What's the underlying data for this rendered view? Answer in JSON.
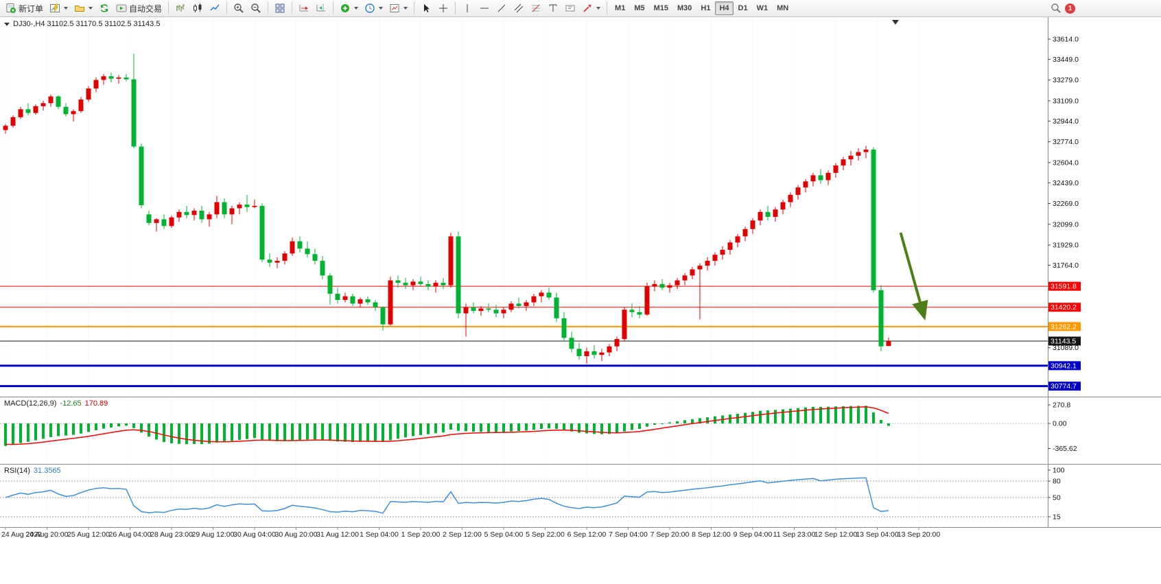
{
  "toolbar": {
    "new_order_label": "新订单",
    "auto_trading_label": "自动交易",
    "timeframes": [
      "M1",
      "M5",
      "M15",
      "M30",
      "H1",
      "H4",
      "D1",
      "W1",
      "MN"
    ],
    "active_timeframe": "H4",
    "notification_count": "1"
  },
  "chart": {
    "symbol_ohlc": "DJ30-,H4 31102.5 31170.5 31102.5 31143.5"
  },
  "macd_panel": {
    "name": "MACD(12,26,9)",
    "value_main": "-12.65",
    "value_signal": "170.89",
    "axis_ticks": [
      "270.8",
      "0.00",
      "-365.62"
    ],
    "axis_values": [
      270.8,
      0,
      -365.62
    ]
  },
  "rsi_panel": {
    "name": "RSI(14)",
    "value": "31.3565",
    "axis_ticks": [
      "100",
      "80",
      "50",
      "15"
    ],
    "axis_values": [
      100,
      80,
      50,
      15
    ],
    "levels": [
      80,
      50,
      15
    ]
  },
  "colors": {
    "up": "#e00000",
    "down": "#00b330",
    "macd_histogram": "#00b330",
    "macd_signal": "#ff0000",
    "rsi_line": "#3e8ede",
    "arrow": "#4e7d1a"
  },
  "chart_data": {
    "type": "candlestick",
    "symbol": "DJ30-",
    "timeframe": "H4",
    "current_ohlc": {
      "open": 31102.5,
      "high": 31170.5,
      "low": 31102.5,
      "close": 31143.5
    },
    "price_range_approx": [
      30690,
      33790
    ],
    "y_axis_ticks": [
      33614.0,
      33449.0,
      33279.0,
      33109.0,
      32944.0,
      32774.0,
      32604.0,
      32439.0,
      32269.0,
      32099.0,
      31929.0,
      31764.0,
      31089.0
    ],
    "x_axis_labels": [
      "24 Aug 2022",
      "24 Aug 20:00",
      "25 Aug 12:00",
      "26 Aug 04:00",
      "28 Aug 23:00",
      "29 Aug 12:00",
      "30 Aug 04:00",
      "30 Aug 20:00",
      "31 Aug 12:00",
      "1 Sep 04:00",
      "1 Sep 20:00",
      "2 Sep 12:00",
      "5 Sep 04:00",
      "5 Sep 22:00",
      "6 Sep 12:00",
      "7 Sep 04:00",
      "7 Sep 20:00",
      "8 Sep 12:00",
      "9 Sep 04:00",
      "11 Sep 23:00",
      "12 Sep 12:00",
      "13 Sep 04:00",
      "13 Sep 20:00"
    ],
    "horizontal_lines": [
      {
        "price": 31591.8,
        "label": "31591.8",
        "color": "#ff0000",
        "width": 1,
        "role": "resistance-line"
      },
      {
        "price": 31420.2,
        "label": "31420.2",
        "color": "#ff0000",
        "width": 1,
        "role": "resistance-line"
      },
      {
        "price": 31262.2,
        "label": "31262.2",
        "color": "#ff9900",
        "width": 2,
        "role": "pivot-line"
      },
      {
        "price": 31143.5,
        "label": "31143.5",
        "color": "#151515",
        "width": 1,
        "role": "current-price-line"
      },
      {
        "price": 30942.1,
        "label": "30942.1",
        "color": "#0000cc",
        "width": 3,
        "role": "support-line"
      },
      {
        "price": 30774.7,
        "label": "30774.7",
        "color": "#0000cc",
        "width": 3,
        "role": "support-line"
      }
    ],
    "indicators": [
      {
        "type": "MACD",
        "params": [
          12,
          26,
          9
        ],
        "current_values": [
          -12.65,
          170.89
        ]
      },
      {
        "type": "RSI",
        "params": [
          14
        ],
        "current_value": 31.3565
      }
    ],
    "arrow_annotation": {
      "x_bar_from": 118.6,
      "price_from": 32030,
      "x_bar_to": 122.2,
      "price_to": 31310
    },
    "ohlc": [
      [
        32870,
        32920,
        32840,
        32905
      ],
      [
        32905,
        32990,
        32890,
        32975
      ],
      [
        32975,
        33060,
        32960,
        33040
      ],
      [
        33040,
        33090,
        32990,
        33010
      ],
      [
        33010,
        33080,
        32995,
        33065
      ],
      [
        33065,
        33110,
        33030,
        33090
      ],
      [
        33090,
        33160,
        33060,
        33145
      ],
      [
        33145,
        33155,
        33040,
        33060
      ],
      [
        33060,
        33090,
        32980,
        33000
      ],
      [
        33000,
        33040,
        32940,
        33025
      ],
      [
        33025,
        33140,
        33010,
        33120
      ],
      [
        33120,
        33230,
        33100,
        33210
      ],
      [
        33210,
        33300,
        33180,
        33280
      ],
      [
        33280,
        33330,
        33240,
        33310
      ],
      [
        33310,
        33340,
        33260,
        33290
      ],
      [
        33290,
        33320,
        33250,
        33300
      ],
      [
        33300,
        33330,
        33270,
        33285
      ],
      [
        33285,
        33495,
        32720,
        32735
      ],
      [
        32735,
        32760,
        32230,
        32255
      ],
      [
        32180,
        32210,
        32090,
        32110
      ],
      [
        32110,
        32150,
        32040,
        32140
      ],
      [
        32140,
        32180,
        32060,
        32085
      ],
      [
        32085,
        32170,
        32070,
        32155
      ],
      [
        32155,
        32220,
        32120,
        32200
      ],
      [
        32200,
        32250,
        32150,
        32175
      ],
      [
        32175,
        32230,
        32130,
        32210
      ],
      [
        32210,
        32250,
        32110,
        32140
      ],
      [
        32140,
        32200,
        32080,
        32180
      ],
      [
        32180,
        32330,
        32150,
        32280
      ],
      [
        32280,
        32310,
        32150,
        32180
      ],
      [
        32180,
        32250,
        32100,
        32230
      ],
      [
        32230,
        32280,
        32180,
        32260
      ],
      [
        32260,
        32340,
        32200,
        32240
      ],
      [
        32240,
        32300,
        32230,
        32250
      ],
      [
        32250,
        32270,
        31790,
        31810
      ],
      [
        31810,
        31860,
        31750,
        31785
      ],
      [
        31785,
        31830,
        31740,
        31800
      ],
      [
        31800,
        31880,
        31770,
        31860
      ],
      [
        31860,
        31990,
        31840,
        31960
      ],
      [
        31960,
        32000,
        31870,
        31900
      ],
      [
        31900,
        31960,
        31830,
        31855
      ],
      [
        31855,
        31900,
        31770,
        31800
      ],
      [
        31800,
        31840,
        31650,
        31680
      ],
      [
        31680,
        31700,
        31440,
        31530
      ],
      [
        31530,
        31580,
        31450,
        31480
      ],
      [
        31480,
        31540,
        31460,
        31510
      ],
      [
        31510,
        31530,
        31430,
        31450
      ],
      [
        31450,
        31500,
        31420,
        31485
      ],
      [
        31485,
        31510,
        31440,
        31460
      ],
      [
        31460,
        31480,
        31390,
        31420
      ],
      [
        31420,
        31430,
        31230,
        31280
      ],
      [
        31280,
        31670,
        31270,
        31640
      ],
      [
        31640,
        31680,
        31580,
        31620
      ],
      [
        31620,
        31660,
        31570,
        31600
      ],
      [
        31600,
        31650,
        31560,
        31630
      ],
      [
        31630,
        31670,
        31590,
        31610
      ],
      [
        31610,
        31640,
        31560,
        31590
      ],
      [
        31590,
        31640,
        31540,
        31620
      ],
      [
        31620,
        31660,
        31570,
        31600
      ],
      [
        31600,
        32030,
        31580,
        32000
      ],
      [
        32000,
        32040,
        31330,
        31370
      ],
      [
        31370,
        31450,
        31180,
        31420
      ],
      [
        31420,
        31460,
        31370,
        31390
      ],
      [
        31390,
        31430,
        31350,
        31410
      ],
      [
        31410,
        31450,
        31380,
        31400
      ],
      [
        31400,
        31440,
        31340,
        31370
      ],
      [
        31370,
        31420,
        31330,
        31400
      ],
      [
        31400,
        31470,
        31380,
        31450
      ],
      [
        31450,
        31500,
        31410,
        31430
      ],
      [
        31430,
        31480,
        31390,
        31460
      ],
      [
        31460,
        31530,
        31430,
        31510
      ],
      [
        31510,
        31560,
        31460,
        31540
      ],
      [
        31540,
        31580,
        31480,
        31500
      ],
      [
        31500,
        31540,
        31300,
        31330
      ],
      [
        31330,
        31380,
        31140,
        31170
      ],
      [
        31170,
        31220,
        31050,
        31080
      ],
      [
        31080,
        31130,
        30990,
        31020
      ],
      [
        31020,
        31090,
        30960,
        31060
      ],
      [
        31060,
        31110,
        31000,
        31030
      ],
      [
        31030,
        31080,
        30980,
        31050
      ],
      [
        31050,
        31120,
        31020,
        31100
      ],
      [
        31100,
        31180,
        31060,
        31160
      ],
      [
        31160,
        31420,
        31140,
        31400
      ],
      [
        31400,
        31450,
        31340,
        31380
      ],
      [
        31380,
        31430,
        31330,
        31360
      ],
      [
        31360,
        31620,
        31350,
        31590
      ],
      [
        31590,
        31640,
        31550,
        31610
      ],
      [
        31610,
        31650,
        31560,
        31580
      ],
      [
        31580,
        31620,
        31540,
        31600
      ],
      [
        31600,
        31660,
        31570,
        31640
      ],
      [
        31640,
        31700,
        31600,
        31680
      ],
      [
        31680,
        31750,
        31650,
        31730
      ],
      [
        31730,
        31780,
        31320,
        31760
      ],
      [
        31760,
        31830,
        31720,
        31800
      ],
      [
        31800,
        31870,
        31760,
        31850
      ],
      [
        31850,
        31920,
        31810,
        31890
      ],
      [
        31890,
        31970,
        31850,
        31950
      ],
      [
        31950,
        32020,
        31910,
        32000
      ],
      [
        32000,
        32080,
        31960,
        32060
      ],
      [
        32060,
        32150,
        32020,
        32130
      ],
      [
        32130,
        32220,
        32090,
        32200
      ],
      [
        32200,
        32250,
        32130,
        32160
      ],
      [
        32160,
        32240,
        32120,
        32220
      ],
      [
        32220,
        32300,
        32180,
        32280
      ],
      [
        32280,
        32360,
        32240,
        32340
      ],
      [
        32340,
        32420,
        32300,
        32400
      ],
      [
        32400,
        32470,
        32360,
        32450
      ],
      [
        32450,
        32520,
        32410,
        32500
      ],
      [
        32500,
        32550,
        32430,
        32460
      ],
      [
        32460,
        32540,
        32420,
        32520
      ],
      [
        32520,
        32600,
        32480,
        32580
      ],
      [
        32580,
        32650,
        32540,
        32630
      ],
      [
        32630,
        32700,
        32580,
        32660
      ],
      [
        32660,
        32720,
        32620,
        32690
      ],
      [
        32690,
        32740,
        32640,
        32710
      ],
      [
        32710,
        32730,
        31540,
        31560
      ],
      [
        31560,
        31600,
        31060,
        31100
      ],
      [
        31102.5,
        31170.5,
        31102.5,
        31143.5
      ]
    ]
  }
}
